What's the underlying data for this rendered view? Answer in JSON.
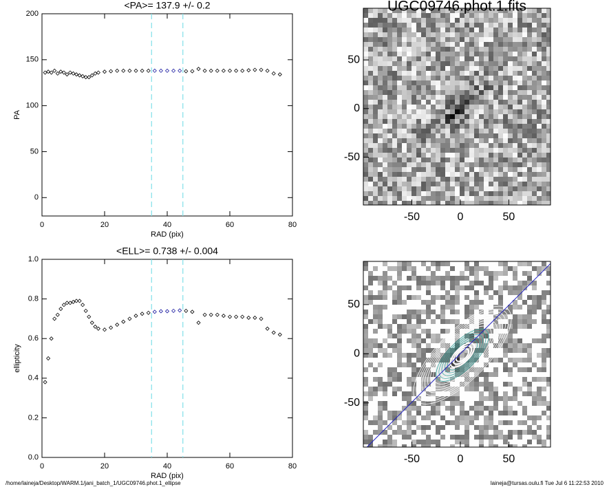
{
  "chart_data": [
    {
      "type": "scatter",
      "title": "<PA>= 137.9 +/-   0.2",
      "xlabel": "RAD (pix)",
      "ylabel": "PA",
      "x": [
        1,
        2,
        3,
        4,
        5,
        6,
        7,
        8,
        9,
        10,
        11,
        12,
        13,
        14,
        15,
        16,
        17,
        18,
        20,
        22,
        24,
        26,
        28,
        30,
        32,
        34,
        36,
        38,
        40,
        42,
        44,
        46,
        48,
        50,
        52,
        54,
        56,
        58,
        60,
        62,
        64,
        66,
        68,
        70,
        72,
        74,
        76
      ],
      "values": [
        136,
        137,
        136,
        138,
        135,
        137,
        136,
        134,
        136,
        135,
        134,
        133,
        132,
        131,
        131,
        133,
        135,
        136,
        137,
        137.5,
        138,
        138,
        138,
        138,
        138,
        138,
        138,
        138,
        138,
        138,
        138,
        137.5,
        137.5,
        140,
        138,
        138,
        138,
        138,
        138,
        138,
        138,
        138.5,
        139,
        139,
        138,
        135,
        134
      ],
      "color": "#000000",
      "highlight_color": "#1a1aa0",
      "vlines": [
        35,
        45
      ],
      "vline_color": "#7fe0e8",
      "xlim": [
        0,
        80
      ],
      "xticks": [
        0,
        20,
        40,
        60,
        80
      ],
      "ylim": [
        -20,
        200
      ],
      "yticks": [
        0,
        50,
        100,
        150,
        200
      ]
    },
    {
      "type": "scatter",
      "title": "<ELL>= 0.738 +/-  0.004",
      "xlabel": "RAD (pix)",
      "ylabel": "ellipticity",
      "x": [
        1,
        2,
        3,
        4,
        5,
        6,
        7,
        8,
        9,
        10,
        11,
        12,
        13,
        14,
        15,
        16,
        17,
        18,
        20,
        22,
        24,
        26,
        28,
        30,
        32,
        34,
        36,
        38,
        40,
        42,
        44,
        46,
        48,
        50,
        52,
        54,
        56,
        58,
        60,
        62,
        64,
        66,
        68,
        70,
        72,
        74,
        76
      ],
      "values": [
        0.38,
        0.5,
        0.6,
        0.7,
        0.72,
        0.75,
        0.77,
        0.78,
        0.78,
        0.785,
        0.79,
        0.79,
        0.77,
        0.74,
        0.71,
        0.68,
        0.66,
        0.65,
        0.645,
        0.655,
        0.67,
        0.685,
        0.7,
        0.715,
        0.725,
        0.73,
        0.735,
        0.738,
        0.738,
        0.74,
        0.742,
        0.74,
        0.735,
        0.68,
        0.72,
        0.72,
        0.72,
        0.715,
        0.71,
        0.71,
        0.71,
        0.705,
        0.705,
        0.7,
        0.65,
        0.63,
        0.62
      ],
      "color": "#000000",
      "highlight_color": "#1a1aa0",
      "vlines": [
        35,
        45
      ],
      "vline_color": "#7fe0e8",
      "xlim": [
        0,
        80
      ],
      "xticks": [
        0,
        20,
        40,
        60,
        80
      ],
      "ylim": [
        0,
        1
      ],
      "yticks": [
        {
          "value": 0,
          "label": "0.0"
        },
        0.2,
        0.4,
        0.6,
        0.8,
        {
          "value": 1,
          "label": "1.0"
        }
      ]
    },
    {
      "type": "image",
      "title": "UGC09746.phot.1.fits",
      "xlim": [
        -100,
        93
      ],
      "xticks": [
        -50,
        0,
        50
      ],
      "ylim": [
        -99,
        103
      ],
      "yticks": [
        -50,
        0,
        50
      ]
    },
    {
      "type": "image",
      "contours": true,
      "xlim": [
        -100,
        93
      ],
      "xticks": [
        -50,
        0,
        50
      ],
      "ylim": [
        -95,
        94
      ],
      "yticks": [
        -50,
        0,
        50
      ]
    }
  ],
  "footer": {
    "left": "/home/laineja/Desktop/WARM.1/jani_batch_1/UGC09746.phot.1_ellipse",
    "right": "laineja@tursas.oulu.fi  Tue Jul  6 11:22:53 2010"
  }
}
